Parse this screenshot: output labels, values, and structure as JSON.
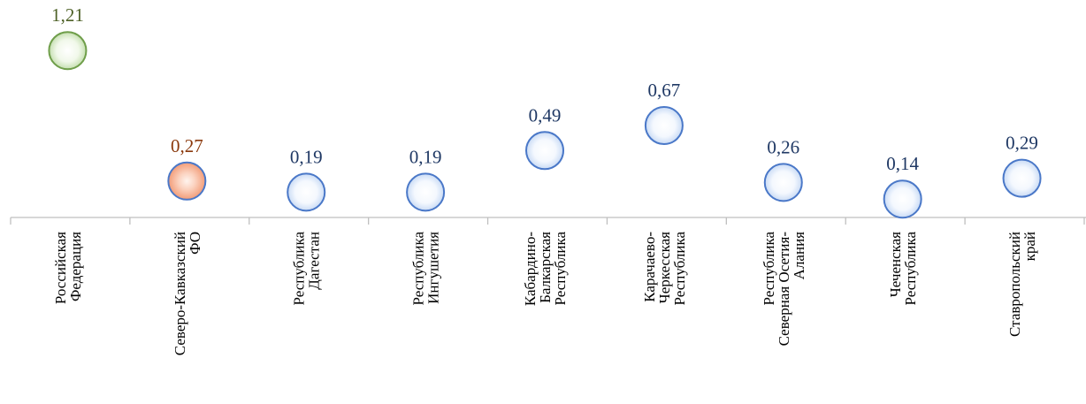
{
  "chart_data": {
    "type": "scatter",
    "title": "",
    "xlabel": "",
    "ylabel": "",
    "ylim": [
      0,
      1.3
    ],
    "grid": false,
    "legend": "none",
    "categories": [
      [
        "Российская",
        "Федерация"
      ],
      [
        "Северо-Кавказский",
        "ФО"
      ],
      [
        "Республика",
        "Дагестан"
      ],
      [
        "Республика",
        "Ингушетия"
      ],
      [
        "Кабардино-",
        "Балкарская",
        "Республика"
      ],
      [
        "Карачаево-",
        "Черкесская",
        "Республика"
      ],
      [
        "Республика",
        "Северная Осетия-",
        "Алания"
      ],
      [
        "Чеченская",
        "Республика"
      ],
      [
        "Ставропольский",
        "край"
      ]
    ],
    "values": [
      1.21,
      0.27,
      0.19,
      0.19,
      0.49,
      0.67,
      0.26,
      0.14,
      0.29
    ],
    "value_labels": [
      "1,21",
      "0,27",
      "0,19",
      "0,19",
      "0,49",
      "0,67",
      "0,26",
      "0,14",
      "0,29"
    ],
    "point_styles": [
      "green",
      "orange",
      "blue",
      "blue",
      "blue",
      "blue",
      "blue",
      "blue",
      "blue"
    ]
  },
  "colors": {
    "green_fill": "#eef7e6",
    "green_stroke": "#6f9e4a",
    "green_label": "#4f6228",
    "orange_fill": "#f7b89e",
    "orange_stroke": "#4a78c8",
    "orange_label": "#8b3a0e",
    "blue_fill": "#eaf2fd",
    "blue_stroke": "#4a78c8",
    "blue_label": "#1f3864",
    "axis": "#bfbfbf"
  }
}
